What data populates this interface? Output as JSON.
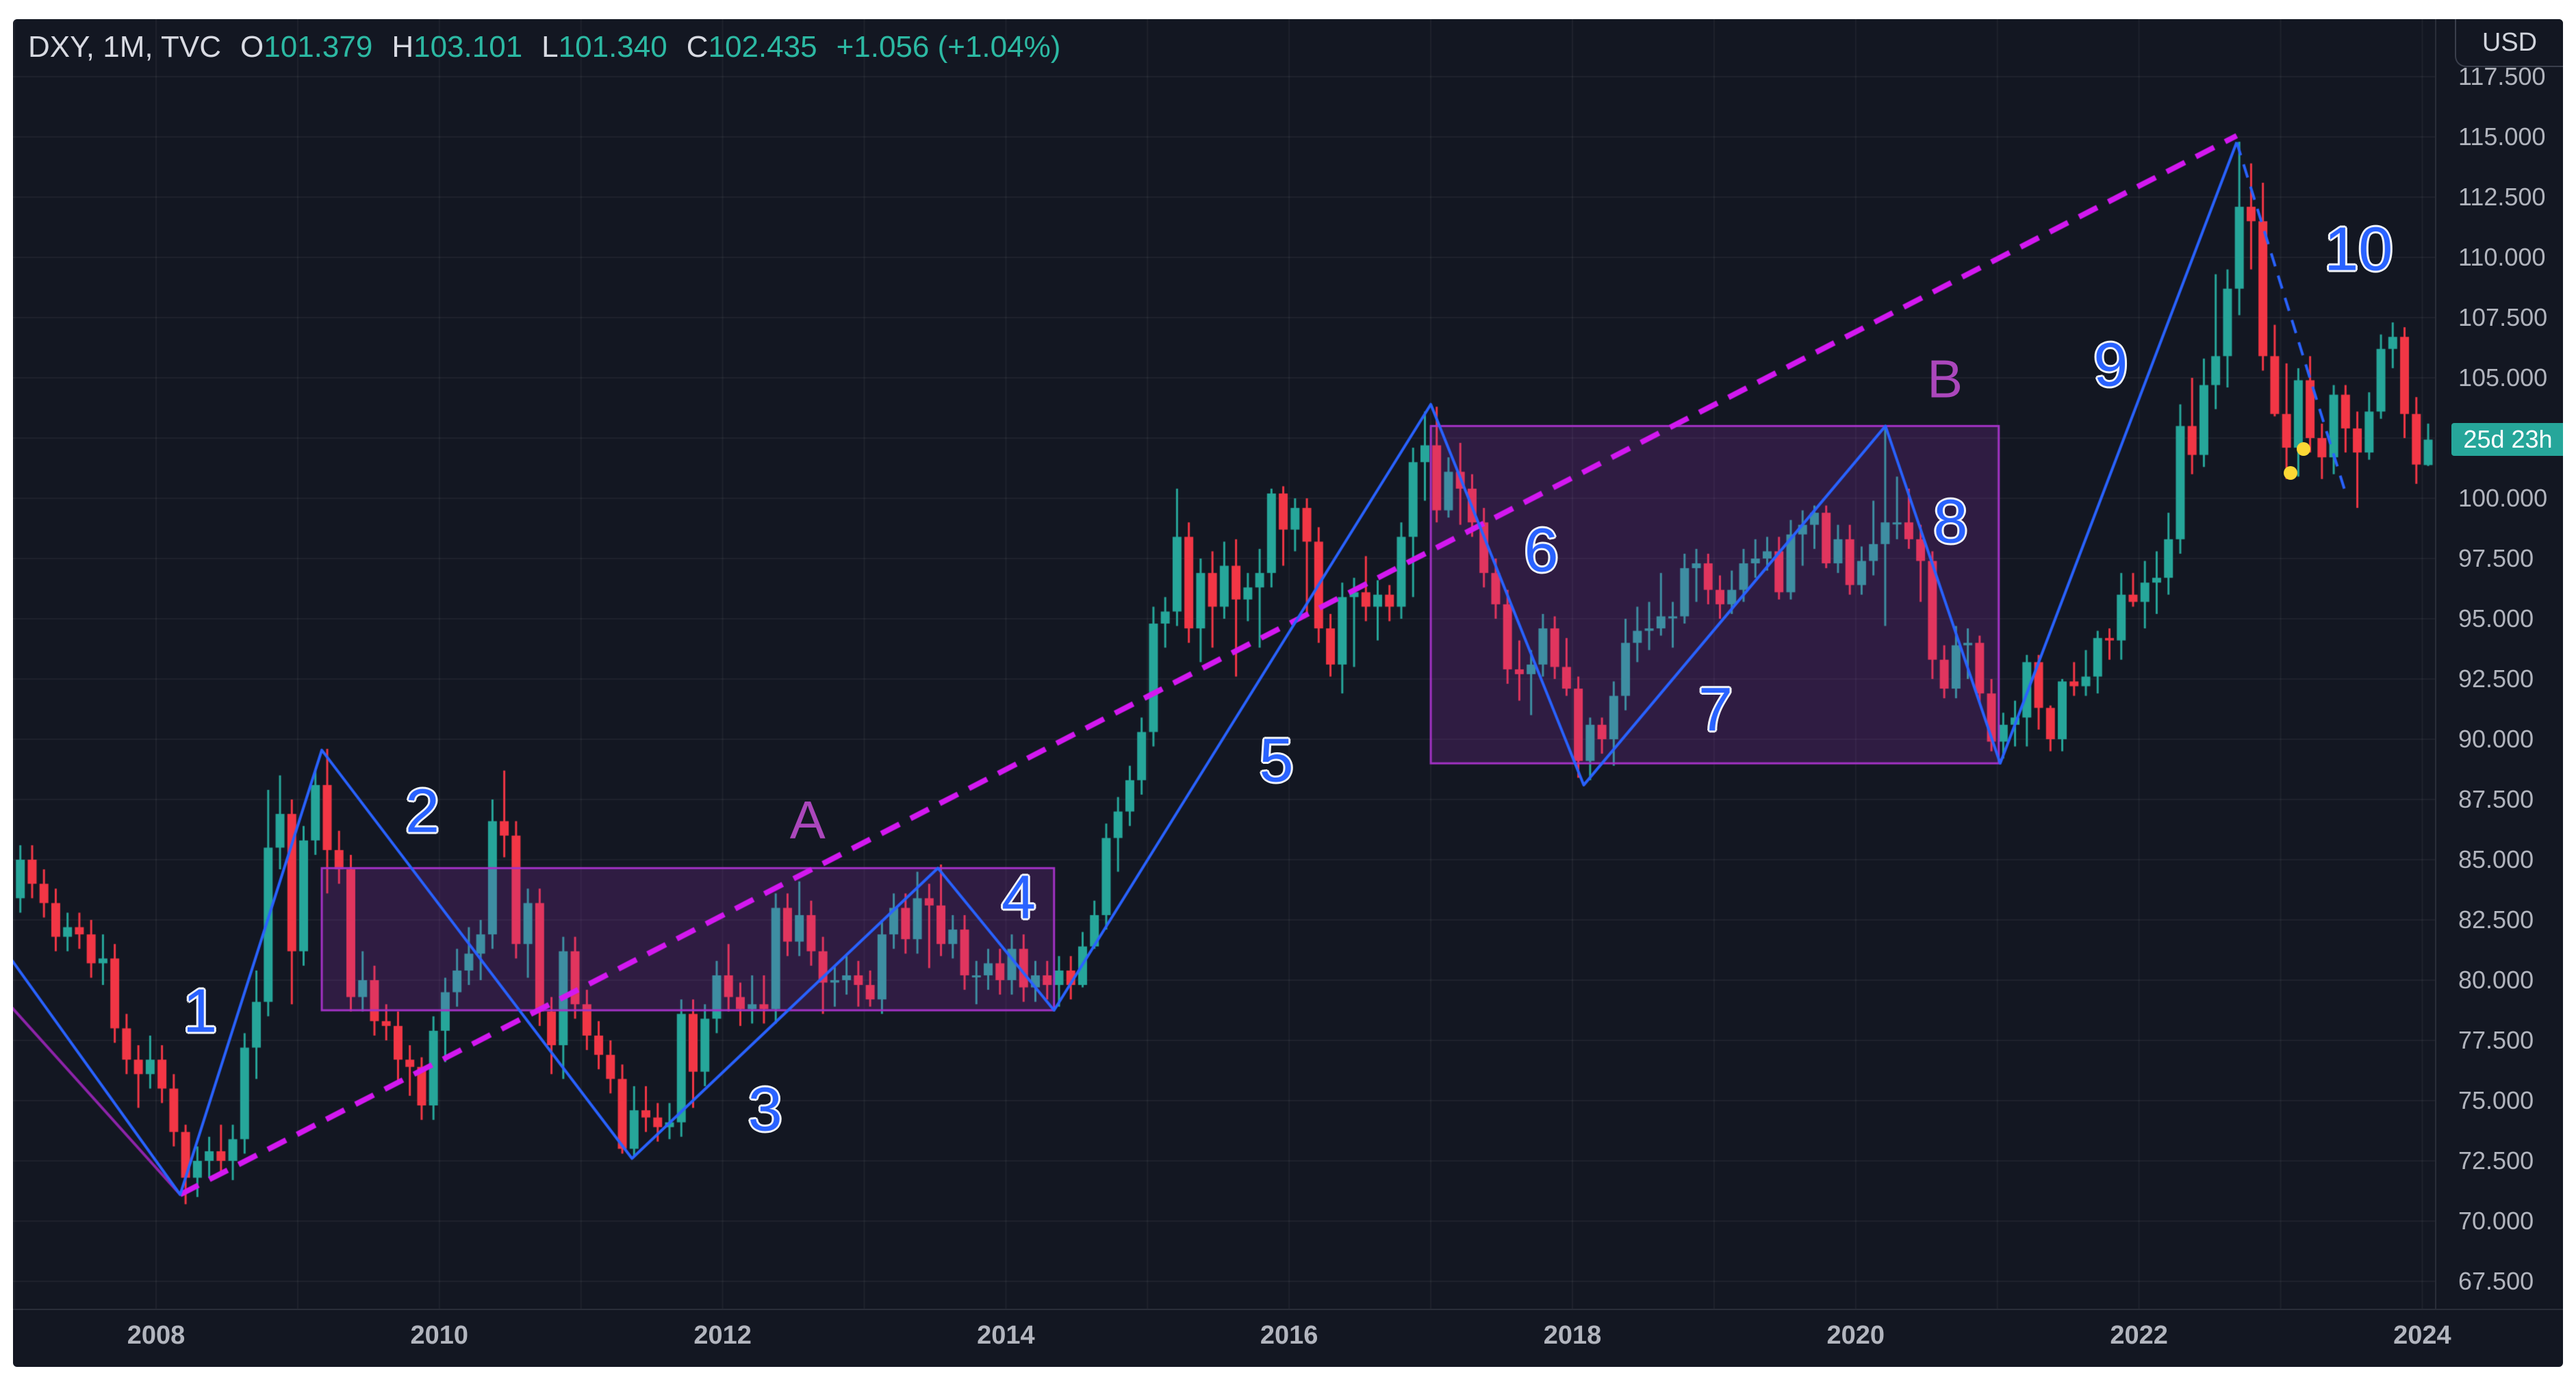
{
  "header": {
    "symbol": "DXY, 1M, TVC",
    "o_label": "O",
    "o_value": "101.379",
    "h_label": "H",
    "h_value": "103.101",
    "l_label": "L",
    "l_value": "101.340",
    "c_label": "C",
    "c_value": "102.435",
    "change": "+1.056 (+1.04%)"
  },
  "axis": {
    "currency_button": "USD",
    "countdown_badge": "25d 23h",
    "price_labels": [
      "117.500",
      "115.000",
      "112.500",
      "110.000",
      "107.500",
      "105.000",
      "100.000",
      "97.500",
      "95.000",
      "92.500",
      "90.000",
      "87.500",
      "85.000",
      "82.500",
      "80.000",
      "77.500",
      "75.000",
      "72.500",
      "70.000",
      "67.500"
    ],
    "year_labels": [
      "2008",
      "2010",
      "2012",
      "2014",
      "2016",
      "2018",
      "2020",
      "2022",
      "2024"
    ]
  },
  "colors": {
    "page_background": "#ffffff",
    "background": "#131722",
    "grid": "rgba(255,255,255,0.05)",
    "pane_border": "#2a2e39",
    "axis_text": "#b2b5be",
    "header_text": "#d8dae2",
    "header_value": "#2cb9a3",
    "candle_up": "#26a69a",
    "candle_down": "#f23645",
    "badge_bg": "#26a69a",
    "badge_text": "#ffffff",
    "wave_blue": "#2962ff",
    "letter_purple": "#ab47bc",
    "box_border": "#a232c4",
    "box_fill": "rgba(162,50,196,0.20)",
    "trend_magenta": "#d318f0",
    "left_line_purple": "#8e24aa",
    "dot_yellow": "#fdd835"
  },
  "chart_data": {
    "type": "candlestick",
    "title": "DXY, 1M, TVC",
    "symbol": "DXY",
    "interval": "1M",
    "exchange": "TVC",
    "ylabel": "Price (USD)",
    "visible_time_range": [
      2006.88,
      2024.08
    ],
    "visible_price_range": [
      66.0,
      120.6
    ],
    "grid": "on",
    "last_bar": {
      "open": 101.379,
      "high": 103.101,
      "low": 101.34,
      "close": 102.435,
      "change": "+1.056",
      "change_pct": "+1.04%",
      "countdown": "25d 23h"
    },
    "candles_start": "2006-11",
    "candles_format": [
      "open",
      "high",
      "low",
      "close"
    ],
    "candles": [
      [
        83.8,
        84.4,
        83.0,
        83.6
      ],
      [
        83.6,
        84.2,
        82.8,
        83.4
      ],
      [
        83.4,
        85.6,
        82.8,
        85.0
      ],
      [
        85.0,
        85.6,
        83.4,
        84.0
      ],
      [
        84.0,
        84.6,
        82.6,
        83.2
      ],
      [
        83.2,
        83.8,
        81.2,
        81.8
      ],
      [
        81.8,
        82.8,
        81.2,
        82.2
      ],
      [
        82.2,
        82.8,
        81.3,
        81.9
      ],
      [
        81.9,
        82.5,
        80.1,
        80.7
      ],
      [
        80.7,
        81.9,
        79.8,
        80.9
      ],
      [
        80.9,
        81.5,
        77.4,
        78.0
      ],
      [
        78.0,
        78.6,
        76.1,
        76.7
      ],
      [
        76.7,
        77.3,
        74.7,
        76.1
      ],
      [
        76.1,
        77.7,
        75.5,
        76.7
      ],
      [
        76.7,
        77.3,
        74.9,
        75.5
      ],
      [
        75.5,
        76.1,
        73.1,
        73.7
      ],
      [
        73.7,
        74.0,
        70.7,
        71.8
      ],
      [
        71.8,
        73.1,
        71.0,
        72.5
      ],
      [
        72.5,
        73.5,
        71.8,
        72.9
      ],
      [
        72.9,
        74.0,
        71.9,
        72.5
      ],
      [
        72.5,
        74.0,
        71.7,
        73.4
      ],
      [
        73.4,
        77.8,
        72.8,
        77.2
      ],
      [
        77.2,
        80.4,
        75.9,
        79.1
      ],
      [
        79.1,
        87.9,
        78.5,
        85.5
      ],
      [
        85.5,
        88.5,
        84.6,
        86.9
      ],
      [
        86.9,
        87.5,
        79.0,
        81.2
      ],
      [
        81.2,
        86.4,
        80.6,
        85.8
      ],
      [
        85.8,
        88.7,
        85.2,
        88.1
      ],
      [
        88.1,
        89.6,
        83.6,
        85.4
      ],
      [
        85.4,
        86.2,
        84.0,
        84.6
      ],
      [
        84.6,
        85.2,
        78.7,
        79.3
      ],
      [
        79.3,
        81.2,
        78.7,
        80.0
      ],
      [
        80.0,
        80.6,
        77.7,
        78.3
      ],
      [
        78.3,
        79.0,
        77.5,
        78.1
      ],
      [
        78.1,
        78.7,
        75.8,
        76.7
      ],
      [
        76.7,
        77.3,
        75.2,
        76.4
      ],
      [
        76.4,
        76.8,
        74.2,
        74.8
      ],
      [
        74.8,
        78.5,
        74.2,
        77.9
      ],
      [
        77.9,
        80.1,
        76.6,
        79.5
      ],
      [
        79.5,
        81.3,
        78.9,
        80.4
      ],
      [
        80.4,
        82.2,
        79.8,
        81.1
      ],
      [
        81.1,
        82.5,
        80.0,
        81.9
      ],
      [
        81.9,
        87.5,
        81.3,
        86.6
      ],
      [
        86.6,
        88.7,
        85.1,
        86.0
      ],
      [
        86.0,
        86.6,
        80.9,
        81.5
      ],
      [
        81.5,
        83.8,
        80.1,
        83.2
      ],
      [
        83.2,
        83.8,
        78.1,
        78.7
      ],
      [
        78.7,
        79.3,
        76.1,
        77.3
      ],
      [
        77.3,
        81.8,
        75.9,
        81.2
      ],
      [
        81.2,
        81.8,
        78.4,
        79.0
      ],
      [
        79.0,
        79.6,
        77.1,
        77.7
      ],
      [
        77.7,
        78.3,
        76.3,
        76.9
      ],
      [
        76.9,
        77.5,
        75.3,
        75.9
      ],
      [
        75.9,
        76.5,
        72.8,
        73.0
      ],
      [
        73.0,
        75.6,
        72.7,
        74.6
      ],
      [
        74.6,
        75.6,
        73.7,
        74.3
      ],
      [
        74.3,
        74.9,
        73.3,
        73.9
      ],
      [
        73.9,
        74.9,
        73.4,
        74.1
      ],
      [
        74.1,
        79.2,
        73.5,
        78.6
      ],
      [
        78.6,
        79.2,
        74.7,
        76.2
      ],
      [
        76.2,
        79.0,
        75.6,
        78.4
      ],
      [
        78.4,
        80.8,
        77.8,
        80.2
      ],
      [
        80.2,
        81.5,
        78.7,
        79.3
      ],
      [
        79.3,
        79.9,
        78.1,
        78.8
      ],
      [
        78.8,
        80.2,
        78.2,
        79.0
      ],
      [
        79.0,
        80.2,
        78.2,
        78.8
      ],
      [
        78.8,
        83.6,
        78.2,
        83.0
      ],
      [
        83.0,
        83.6,
        81.0,
        81.6
      ],
      [
        81.6,
        84.1,
        81.0,
        82.7
      ],
      [
        82.7,
        83.3,
        80.6,
        81.2
      ],
      [
        81.2,
        81.8,
        78.6,
        79.9
      ],
      [
        79.9,
        80.6,
        78.9,
        80.0
      ],
      [
        80.0,
        81.0,
        79.4,
        80.2
      ],
      [
        80.2,
        80.8,
        78.9,
        79.8
      ],
      [
        79.8,
        80.4,
        78.9,
        79.2
      ],
      [
        79.2,
        82.5,
        78.6,
        81.9
      ],
      [
        81.9,
        83.6,
        81.3,
        83.0
      ],
      [
        83.0,
        83.6,
        81.1,
        81.7
      ],
      [
        81.7,
        84.5,
        81.1,
        83.4
      ],
      [
        83.4,
        84.0,
        80.5,
        83.1
      ],
      [
        83.1,
        84.8,
        81.0,
        81.5
      ],
      [
        81.5,
        82.7,
        80.9,
        82.1
      ],
      [
        82.1,
        82.7,
        79.6,
        80.2
      ],
      [
        80.2,
        80.8,
        79.0,
        80.2
      ],
      [
        80.2,
        81.3,
        79.6,
        80.7
      ],
      [
        80.7,
        81.3,
        79.4,
        80.0
      ],
      [
        80.0,
        81.9,
        79.4,
        81.3
      ],
      [
        81.3,
        81.9,
        79.1,
        79.7
      ],
      [
        79.7,
        80.8,
        79.1,
        80.2
      ],
      [
        80.2,
        80.8,
        79.2,
        79.8
      ],
      [
        79.8,
        81.0,
        78.9,
        80.4
      ],
      [
        80.4,
        81.0,
        79.2,
        79.8
      ],
      [
        79.8,
        82.0,
        79.7,
        81.4
      ],
      [
        81.4,
        83.3,
        81.3,
        82.7
      ],
      [
        82.7,
        86.5,
        82.1,
        85.9
      ],
      [
        85.9,
        87.6,
        84.5,
        87.0
      ],
      [
        87.0,
        88.9,
        86.4,
        88.3
      ],
      [
        88.3,
        90.9,
        87.7,
        90.3
      ],
      [
        90.3,
        95.5,
        89.7,
        94.8
      ],
      [
        94.8,
        95.9,
        93.8,
        95.3
      ],
      [
        95.3,
        100.4,
        94.7,
        98.4
      ],
      [
        98.4,
        99.0,
        94.0,
        94.6
      ],
      [
        94.6,
        97.5,
        93.2,
        96.9
      ],
      [
        96.9,
        97.8,
        93.8,
        95.5
      ],
      [
        95.5,
        98.2,
        95.0,
        97.2
      ],
      [
        97.2,
        98.3,
        92.6,
        95.8
      ],
      [
        95.8,
        96.9,
        94.9,
        96.3
      ],
      [
        96.3,
        97.9,
        93.8,
        96.9
      ],
      [
        96.9,
        100.4,
        96.3,
        100.2
      ],
      [
        100.2,
        100.5,
        97.2,
        98.7
      ],
      [
        98.7,
        100.0,
        97.8,
        99.6
      ],
      [
        99.6,
        100.0,
        95.2,
        98.2
      ],
      [
        98.2,
        98.8,
        94.0,
        94.6
      ],
      [
        94.6,
        95.2,
        92.6,
        93.1
      ],
      [
        93.1,
        96.5,
        91.9,
        95.9
      ],
      [
        95.9,
        96.7,
        93.0,
        96.1
      ],
      [
        96.1,
        97.6,
        94.9,
        95.5
      ],
      [
        95.5,
        96.6,
        94.1,
        96.0
      ],
      [
        96.0,
        96.4,
        94.9,
        95.5
      ],
      [
        95.5,
        99.0,
        95.0,
        98.4
      ],
      [
        98.4,
        102.1,
        95.9,
        101.5
      ],
      [
        101.5,
        103.6,
        99.9,
        102.2
      ],
      [
        102.2,
        103.8,
        99.0,
        99.5
      ],
      [
        99.5,
        101.7,
        99.2,
        101.1
      ],
      [
        101.1,
        102.3,
        98.9,
        100.4
      ],
      [
        100.4,
        101.0,
        98.4,
        99.0
      ],
      [
        99.0,
        99.6,
        96.3,
        96.9
      ],
      [
        96.9,
        97.5,
        95.0,
        95.6
      ],
      [
        95.6,
        96.2,
        92.3,
        92.9
      ],
      [
        92.9,
        94.1,
        91.6,
        92.7
      ],
      [
        92.7,
        93.7,
        91.0,
        93.1
      ],
      [
        93.1,
        95.2,
        92.6,
        94.6
      ],
      [
        94.6,
        95.1,
        92.5,
        93.0
      ],
      [
        93.0,
        94.2,
        91.8,
        92.1
      ],
      [
        92.1,
        92.6,
        88.4,
        89.1
      ],
      [
        89.1,
        90.9,
        88.3,
        90.6
      ],
      [
        90.6,
        90.9,
        89.4,
        90.0
      ],
      [
        90.0,
        92.4,
        88.9,
        91.8
      ],
      [
        91.8,
        95.0,
        91.2,
        94.0
      ],
      [
        94.0,
        95.5,
        93.2,
        94.5
      ],
      [
        94.5,
        95.7,
        93.7,
        94.6
      ],
      [
        94.6,
        96.9,
        94.3,
        95.1
      ],
      [
        95.1,
        95.7,
        93.8,
        95.1
      ],
      [
        95.1,
        97.7,
        94.8,
        97.1
      ],
      [
        97.1,
        97.9,
        95.7,
        97.3
      ],
      [
        97.3,
        97.7,
        95.6,
        96.2
      ],
      [
        96.2,
        96.8,
        95.0,
        95.6
      ],
      [
        95.6,
        97.0,
        95.2,
        96.2
      ],
      [
        96.2,
        97.9,
        95.7,
        97.3
      ],
      [
        97.3,
        98.3,
        96.7,
        97.5
      ],
      [
        97.5,
        98.4,
        97.0,
        97.8
      ],
      [
        97.8,
        98.4,
        95.8,
        96.1
      ],
      [
        96.1,
        99.1,
        95.8,
        98.5
      ],
      [
        98.5,
        99.5,
        97.2,
        98.9
      ],
      [
        98.9,
        99.7,
        97.9,
        99.4
      ],
      [
        99.4,
        99.7,
        97.1,
        97.3
      ],
      [
        97.3,
        98.9,
        96.9,
        98.3
      ],
      [
        98.3,
        98.9,
        96.0,
        96.4
      ],
      [
        96.4,
        98.0,
        96.0,
        97.4
      ],
      [
        97.4,
        99.9,
        96.8,
        98.1
      ],
      [
        98.1,
        103.0,
        94.7,
        99.0
      ],
      [
        99.0,
        100.9,
        98.3,
        99.0
      ],
      [
        99.0,
        100.4,
        97.9,
        98.3
      ],
      [
        98.3,
        98.9,
        95.7,
        97.4
      ],
      [
        97.4,
        97.8,
        92.5,
        93.3
      ],
      [
        93.3,
        93.9,
        91.7,
        92.1
      ],
      [
        92.1,
        94.7,
        91.7,
        93.9
      ],
      [
        93.9,
        94.6,
        92.5,
        94.0
      ],
      [
        94.0,
        94.3,
        91.5,
        91.9
      ],
      [
        91.9,
        92.5,
        89.5,
        89.9
      ],
      [
        89.9,
        91.1,
        89.2,
        90.6
      ],
      [
        90.6,
        91.6,
        89.7,
        90.9
      ],
      [
        90.9,
        93.5,
        89.7,
        93.2
      ],
      [
        93.2,
        93.5,
        90.4,
        91.3
      ],
      [
        91.3,
        91.4,
        89.5,
        90.0
      ],
      [
        90.0,
        92.5,
        89.5,
        92.4
      ],
      [
        92.4,
        93.2,
        91.8,
        92.2
      ],
      [
        92.2,
        93.7,
        91.8,
        92.6
      ],
      [
        92.6,
        94.5,
        91.9,
        94.2
      ],
      [
        94.2,
        94.6,
        93.3,
        94.1
      ],
      [
        94.1,
        96.9,
        93.3,
        96.0
      ],
      [
        96.0,
        96.9,
        95.5,
        95.7
      ],
      [
        95.7,
        97.4,
        94.6,
        96.5
      ],
      [
        96.5,
        97.8,
        95.2,
        96.7
      ],
      [
        96.7,
        99.4,
        96.0,
        98.3
      ],
      [
        98.3,
        103.9,
        97.7,
        103.0
      ],
      [
        103.0,
        105.0,
        101.0,
        101.8
      ],
      [
        101.8,
        105.8,
        101.3,
        104.7
      ],
      [
        104.7,
        109.3,
        103.7,
        105.9
      ],
      [
        105.9,
        109.5,
        104.6,
        108.7
      ],
      [
        108.7,
        114.8,
        107.6,
        112.1
      ],
      [
        112.1,
        113.9,
        109.5,
        111.5
      ],
      [
        111.5,
        113.1,
        105.3,
        105.9
      ],
      [
        105.9,
        107.2,
        103.4,
        103.5
      ],
      [
        103.5,
        105.6,
        100.8,
        102.1
      ],
      [
        102.1,
        105.4,
        100.9,
        104.9
      ],
      [
        104.9,
        105.9,
        101.9,
        102.5
      ],
      [
        102.5,
        103.1,
        100.8,
        101.7
      ],
      [
        101.7,
        104.7,
        101.0,
        104.3
      ],
      [
        104.3,
        104.7,
        101.9,
        102.9
      ],
      [
        102.9,
        103.6,
        99.6,
        101.9
      ],
      [
        101.9,
        104.4,
        101.6,
        103.6
      ],
      [
        103.6,
        106.8,
        103.3,
        106.2
      ],
      [
        106.2,
        107.3,
        105.4,
        106.7
      ],
      [
        106.7,
        107.1,
        102.5,
        103.5
      ],
      [
        103.5,
        104.2,
        100.6,
        101.4
      ],
      [
        101.379,
        103.101,
        101.34,
        102.435
      ]
    ],
    "overlays": {
      "zigzag": {
        "color": "#2962ff",
        "points": [
          [
            2006.9,
            81.5
          ],
          [
            2008.17,
            71.1
          ],
          [
            2009.17,
            89.55
          ],
          [
            2011.36,
            72.6
          ],
          [
            2013.52,
            84.65
          ],
          [
            2014.34,
            78.75
          ],
          [
            2017.0,
            103.9
          ],
          [
            2018.08,
            88.1
          ],
          [
            2020.21,
            103.0
          ],
          [
            2021.02,
            89.0
          ],
          [
            2022.69,
            114.78
          ]
        ]
      },
      "long_trendline_dashed": {
        "color": "#d318f0",
        "from": [
          2008.17,
          71.1
        ],
        "to": [
          2022.69,
          115.05
        ]
      },
      "left_trendline": {
        "color": "#8e24aa",
        "from": [
          2006.9,
          79.4
        ],
        "to": [
          2008.17,
          71.1
        ]
      },
      "down_trendline_dashed": {
        "color": "#2962ff",
        "from": [
          2022.69,
          114.78
        ],
        "to": [
          2023.46,
          100.2
        ]
      },
      "boxes": [
        {
          "label": "A",
          "t1": 2009.17,
          "t2": 2014.34,
          "p_top": 84.65,
          "p_bottom": 78.75,
          "label_t": 2012.6,
          "label_p": 86.65
        },
        {
          "label": "B",
          "t1": 2017.0,
          "t2": 2021.01,
          "p_top": 103.0,
          "p_bottom": 89.0,
          "label_t": 2020.63,
          "label_p": 104.95
        }
      ],
      "wave_labels": [
        {
          "text": "1",
          "t": 2008.31,
          "p": 78.7
        },
        {
          "text": "2",
          "t": 2009.88,
          "p": 87.0
        },
        {
          "text": "3",
          "t": 2012.3,
          "p": 74.6
        },
        {
          "text": "4",
          "t": 2014.09,
          "p": 83.4
        },
        {
          "text": "5",
          "t": 2015.91,
          "p": 89.1
        },
        {
          "text": "6",
          "t": 2017.78,
          "p": 97.8
        },
        {
          "text": "7",
          "t": 2019.01,
          "p": 91.2
        },
        {
          "text": "8",
          "t": 2020.67,
          "p": 99.0
        },
        {
          "text": "9",
          "t": 2021.8,
          "p": 105.5
        },
        {
          "text": "10",
          "t": 2023.55,
          "p": 110.3
        }
      ],
      "dots": [
        {
          "t": 2023.07,
          "p": 101.05
        },
        {
          "t": 2023.16,
          "p": 102.05
        }
      ]
    }
  }
}
